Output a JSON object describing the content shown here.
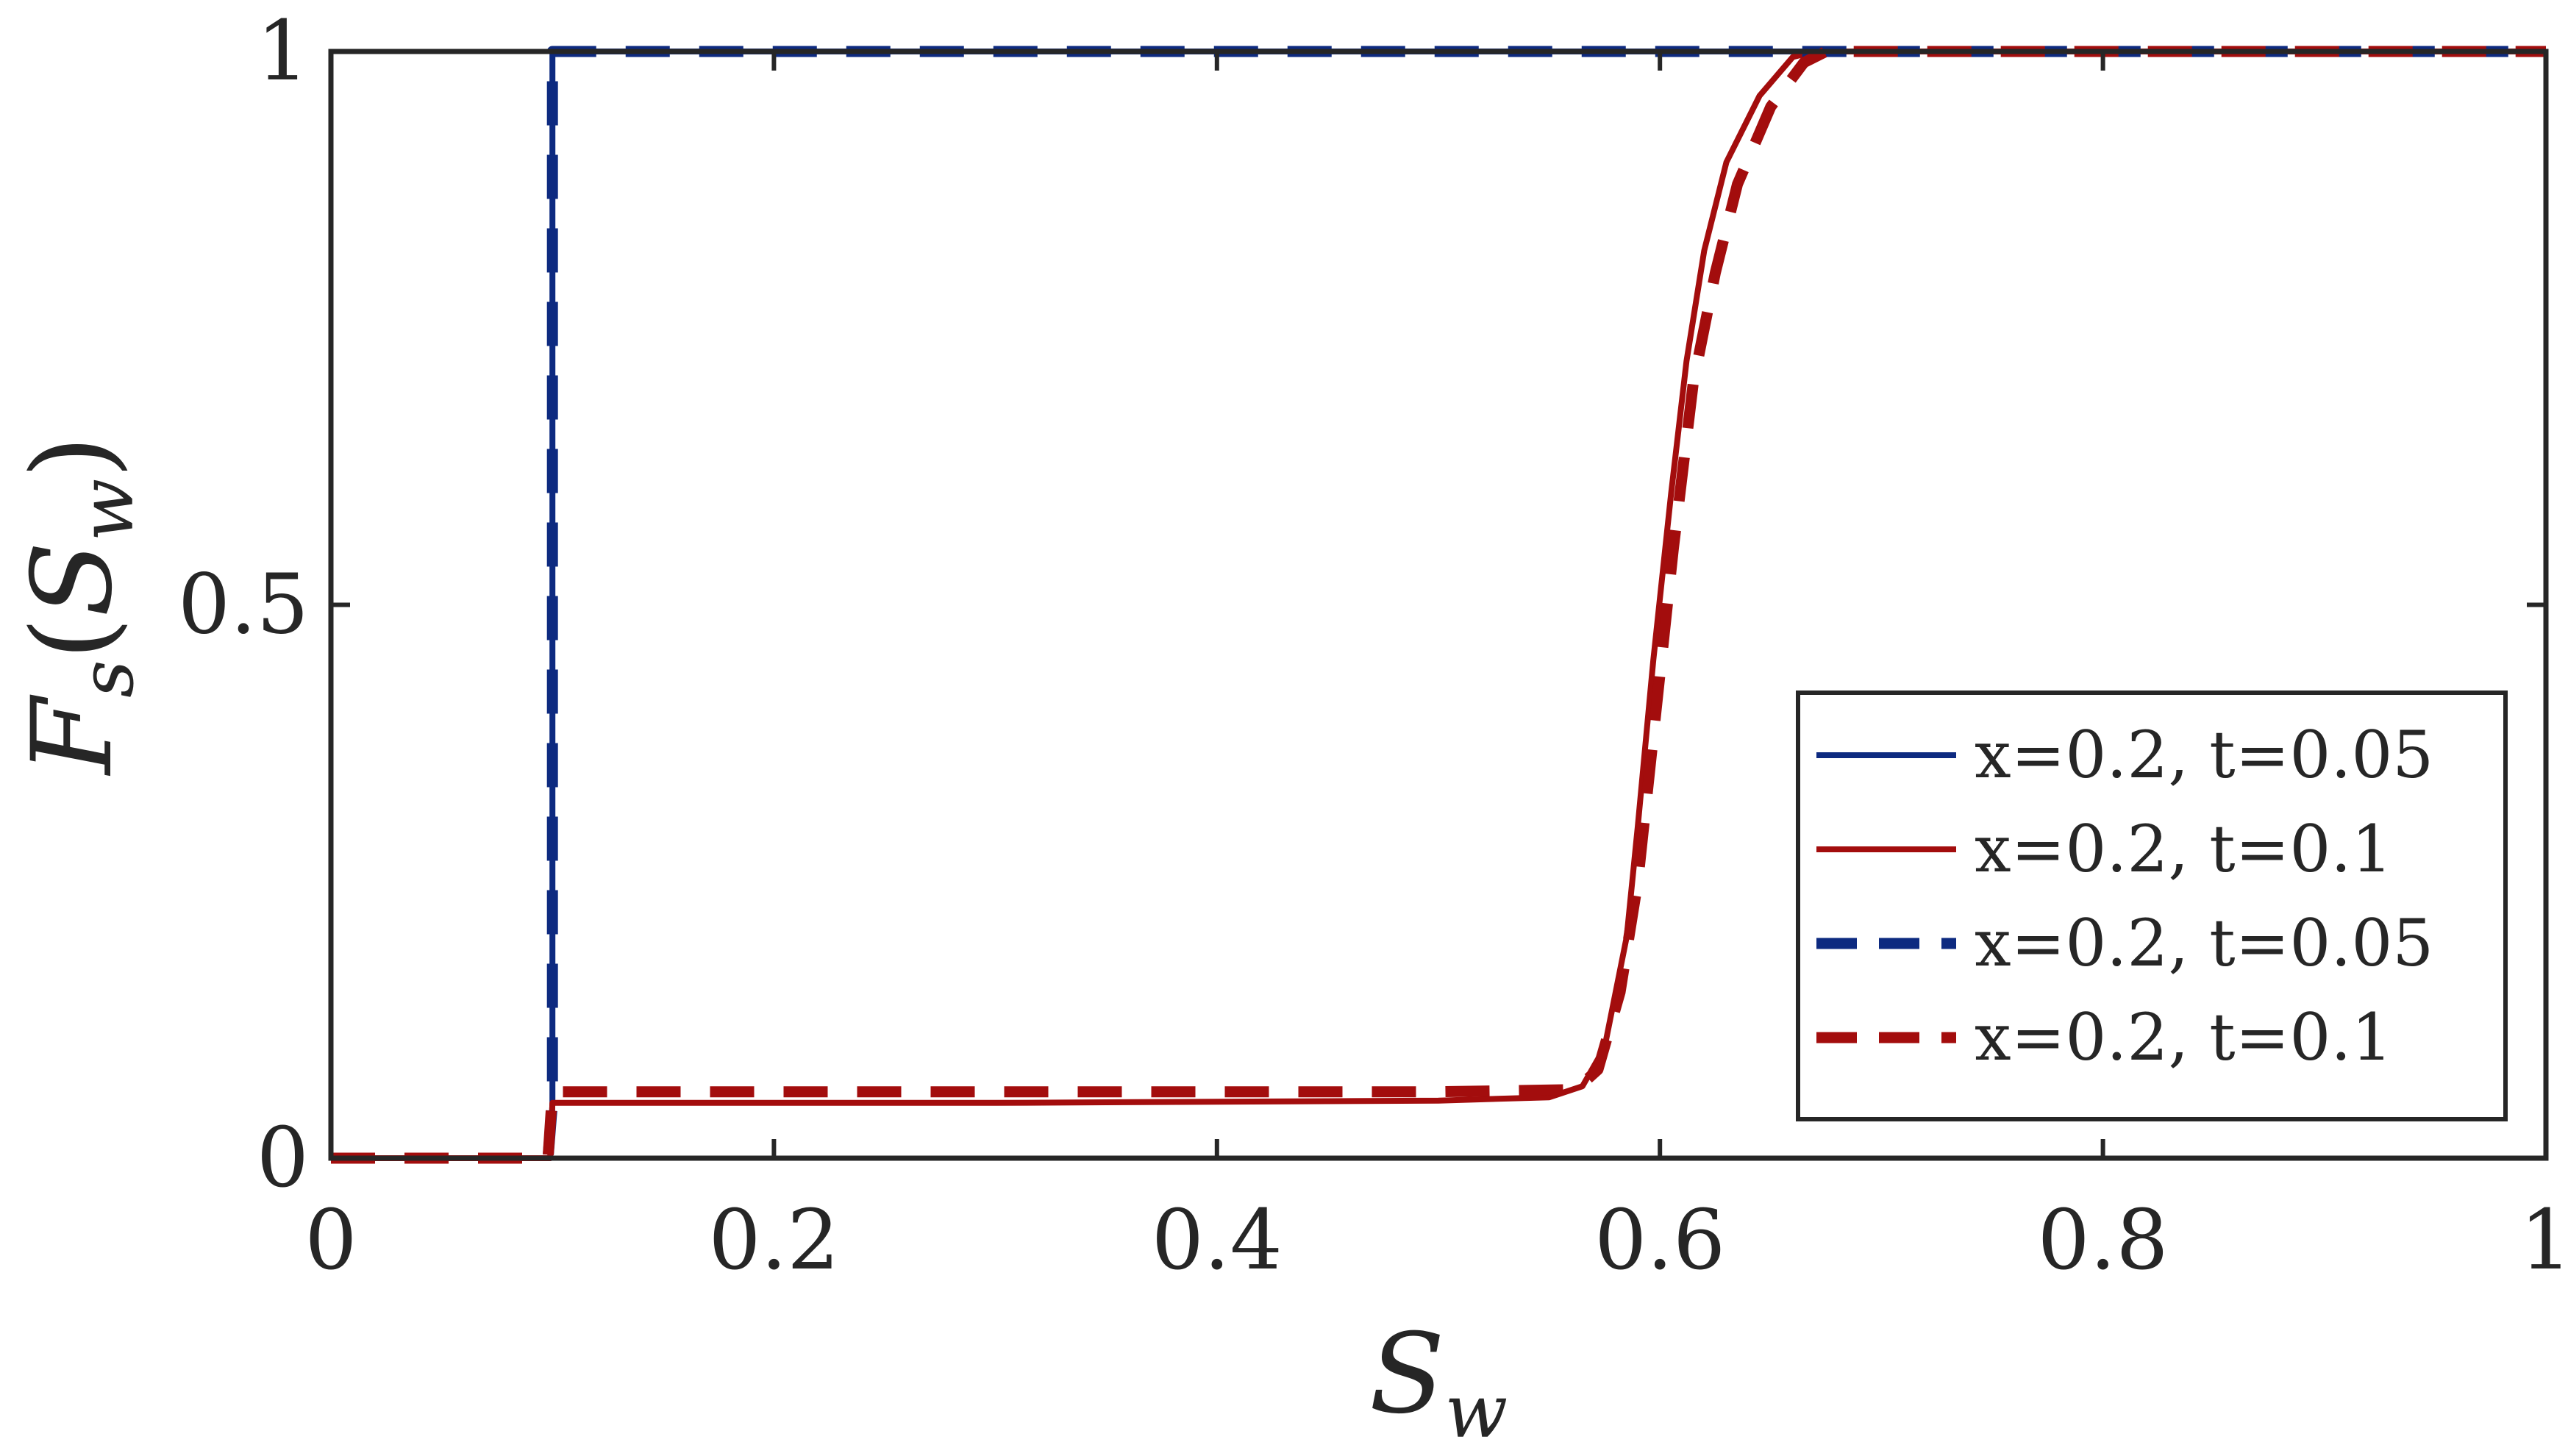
{
  "chart_data": {
    "type": "line",
    "title": "",
    "xlabel": {
      "main": "S",
      "sub": "w"
    },
    "ylabel": {
      "func": "F",
      "func_sub": "s",
      "arg": "S",
      "arg_sub": "w"
    },
    "xlim": [
      0,
      1
    ],
    "ylim": [
      0,
      1
    ],
    "xticks": [
      {
        "value": 0,
        "label": "0"
      },
      {
        "value": 0.2,
        "label": "0.2"
      },
      {
        "value": 0.4,
        "label": "0.4"
      },
      {
        "value": 0.6,
        "label": "0.6"
      },
      {
        "value": 0.8,
        "label": "0.8"
      },
      {
        "value": 1,
        "label": "1"
      }
    ],
    "yticks": [
      {
        "value": 0,
        "label": "0"
      },
      {
        "value": 0.5,
        "label": "0.5"
      },
      {
        "value": 1,
        "label": "1"
      }
    ],
    "grid": false,
    "legend_position": "bottom-right",
    "series": [
      {
        "name": "x=0.2, t=0.05",
        "color": "#0d2a80",
        "style": "solid",
        "points": [
          [
            0,
            0
          ],
          [
            0.099,
            0
          ],
          [
            0.1,
            0.05
          ],
          [
            0.1,
            1
          ],
          [
            1,
            1
          ]
        ]
      },
      {
        "name": "x=0.2, t=0.1",
        "color": "#a30d0d",
        "style": "solid",
        "points": [
          [
            0,
            0
          ],
          [
            0.099,
            0
          ],
          [
            0.1,
            0.05
          ],
          [
            0.3,
            0.05
          ],
          [
            0.5,
            0.052
          ],
          [
            0.55,
            0.055
          ],
          [
            0.565,
            0.065
          ],
          [
            0.575,
            0.1
          ],
          [
            0.585,
            0.2
          ],
          [
            0.59,
            0.3
          ],
          [
            0.597,
            0.45
          ],
          [
            0.605,
            0.6
          ],
          [
            0.612,
            0.72
          ],
          [
            0.62,
            0.82
          ],
          [
            0.63,
            0.9
          ],
          [
            0.645,
            0.96
          ],
          [
            0.66,
            0.995
          ],
          [
            0.67,
            1
          ],
          [
            1,
            1
          ]
        ]
      },
      {
        "name": "x=0.2, t=0.05",
        "color": "#0d2a80",
        "style": "dashed",
        "points": [
          [
            0,
            0
          ],
          [
            0.098,
            0
          ],
          [
            0.1,
            0.05
          ],
          [
            0.1,
            1
          ],
          [
            1,
            1
          ]
        ]
      },
      {
        "name": "x=0.2, t=0.1",
        "color": "#a30d0d",
        "style": "dashed",
        "points": [
          [
            0,
            0
          ],
          [
            0.098,
            0
          ],
          [
            0.1,
            0.06
          ],
          [
            0.3,
            0.06
          ],
          [
            0.5,
            0.06
          ],
          [
            0.562,
            0.062
          ],
          [
            0.572,
            0.08
          ],
          [
            0.582,
            0.15
          ],
          [
            0.59,
            0.25
          ],
          [
            0.598,
            0.4
          ],
          [
            0.606,
            0.55
          ],
          [
            0.615,
            0.7
          ],
          [
            0.625,
            0.8
          ],
          [
            0.635,
            0.88
          ],
          [
            0.65,
            0.95
          ],
          [
            0.665,
            0.99
          ],
          [
            0.675,
            1
          ],
          [
            1,
            1
          ]
        ]
      }
    ]
  }
}
